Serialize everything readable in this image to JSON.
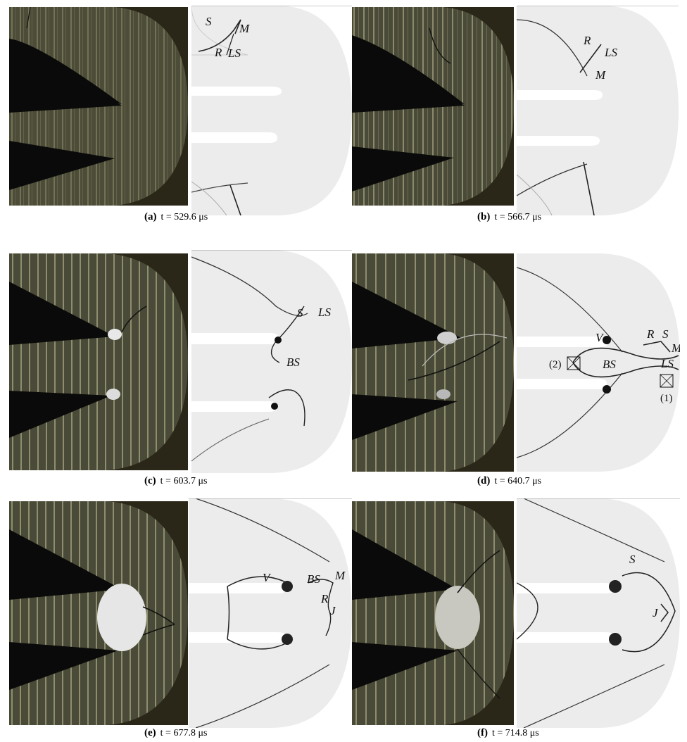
{
  "panels": [
    {
      "letter": "(a)",
      "time": "t = 529.6 μs",
      "labels": [
        "S",
        "M",
        "R",
        "LS"
      ]
    },
    {
      "letter": "(b)",
      "time": "t = 566.7 μs",
      "labels": [
        "R",
        "LS",
        "M"
      ]
    },
    {
      "letter": "(c)",
      "time": "t = 603.7 μs",
      "labels": [
        "S",
        "LS",
        "BS"
      ]
    },
    {
      "letter": "(d)",
      "time": "t = 640.7 μs",
      "labels": [
        "V",
        "R",
        "S",
        "M",
        "BS",
        "LS"
      ],
      "markers": [
        "(2)",
        "(1)"
      ]
    },
    {
      "letter": "(e)",
      "time": "t = 677.8 μs",
      "labels": [
        "V",
        "BS",
        "M",
        "R",
        "J"
      ]
    },
    {
      "letter": "(f)",
      "time": "t = 714.8 μs",
      "labels": [
        "S",
        "J"
      ]
    }
  ],
  "colors": {
    "photo_bg": "#1e1a12",
    "channel_gray": "#ececec",
    "shock_line": "#222222"
  }
}
